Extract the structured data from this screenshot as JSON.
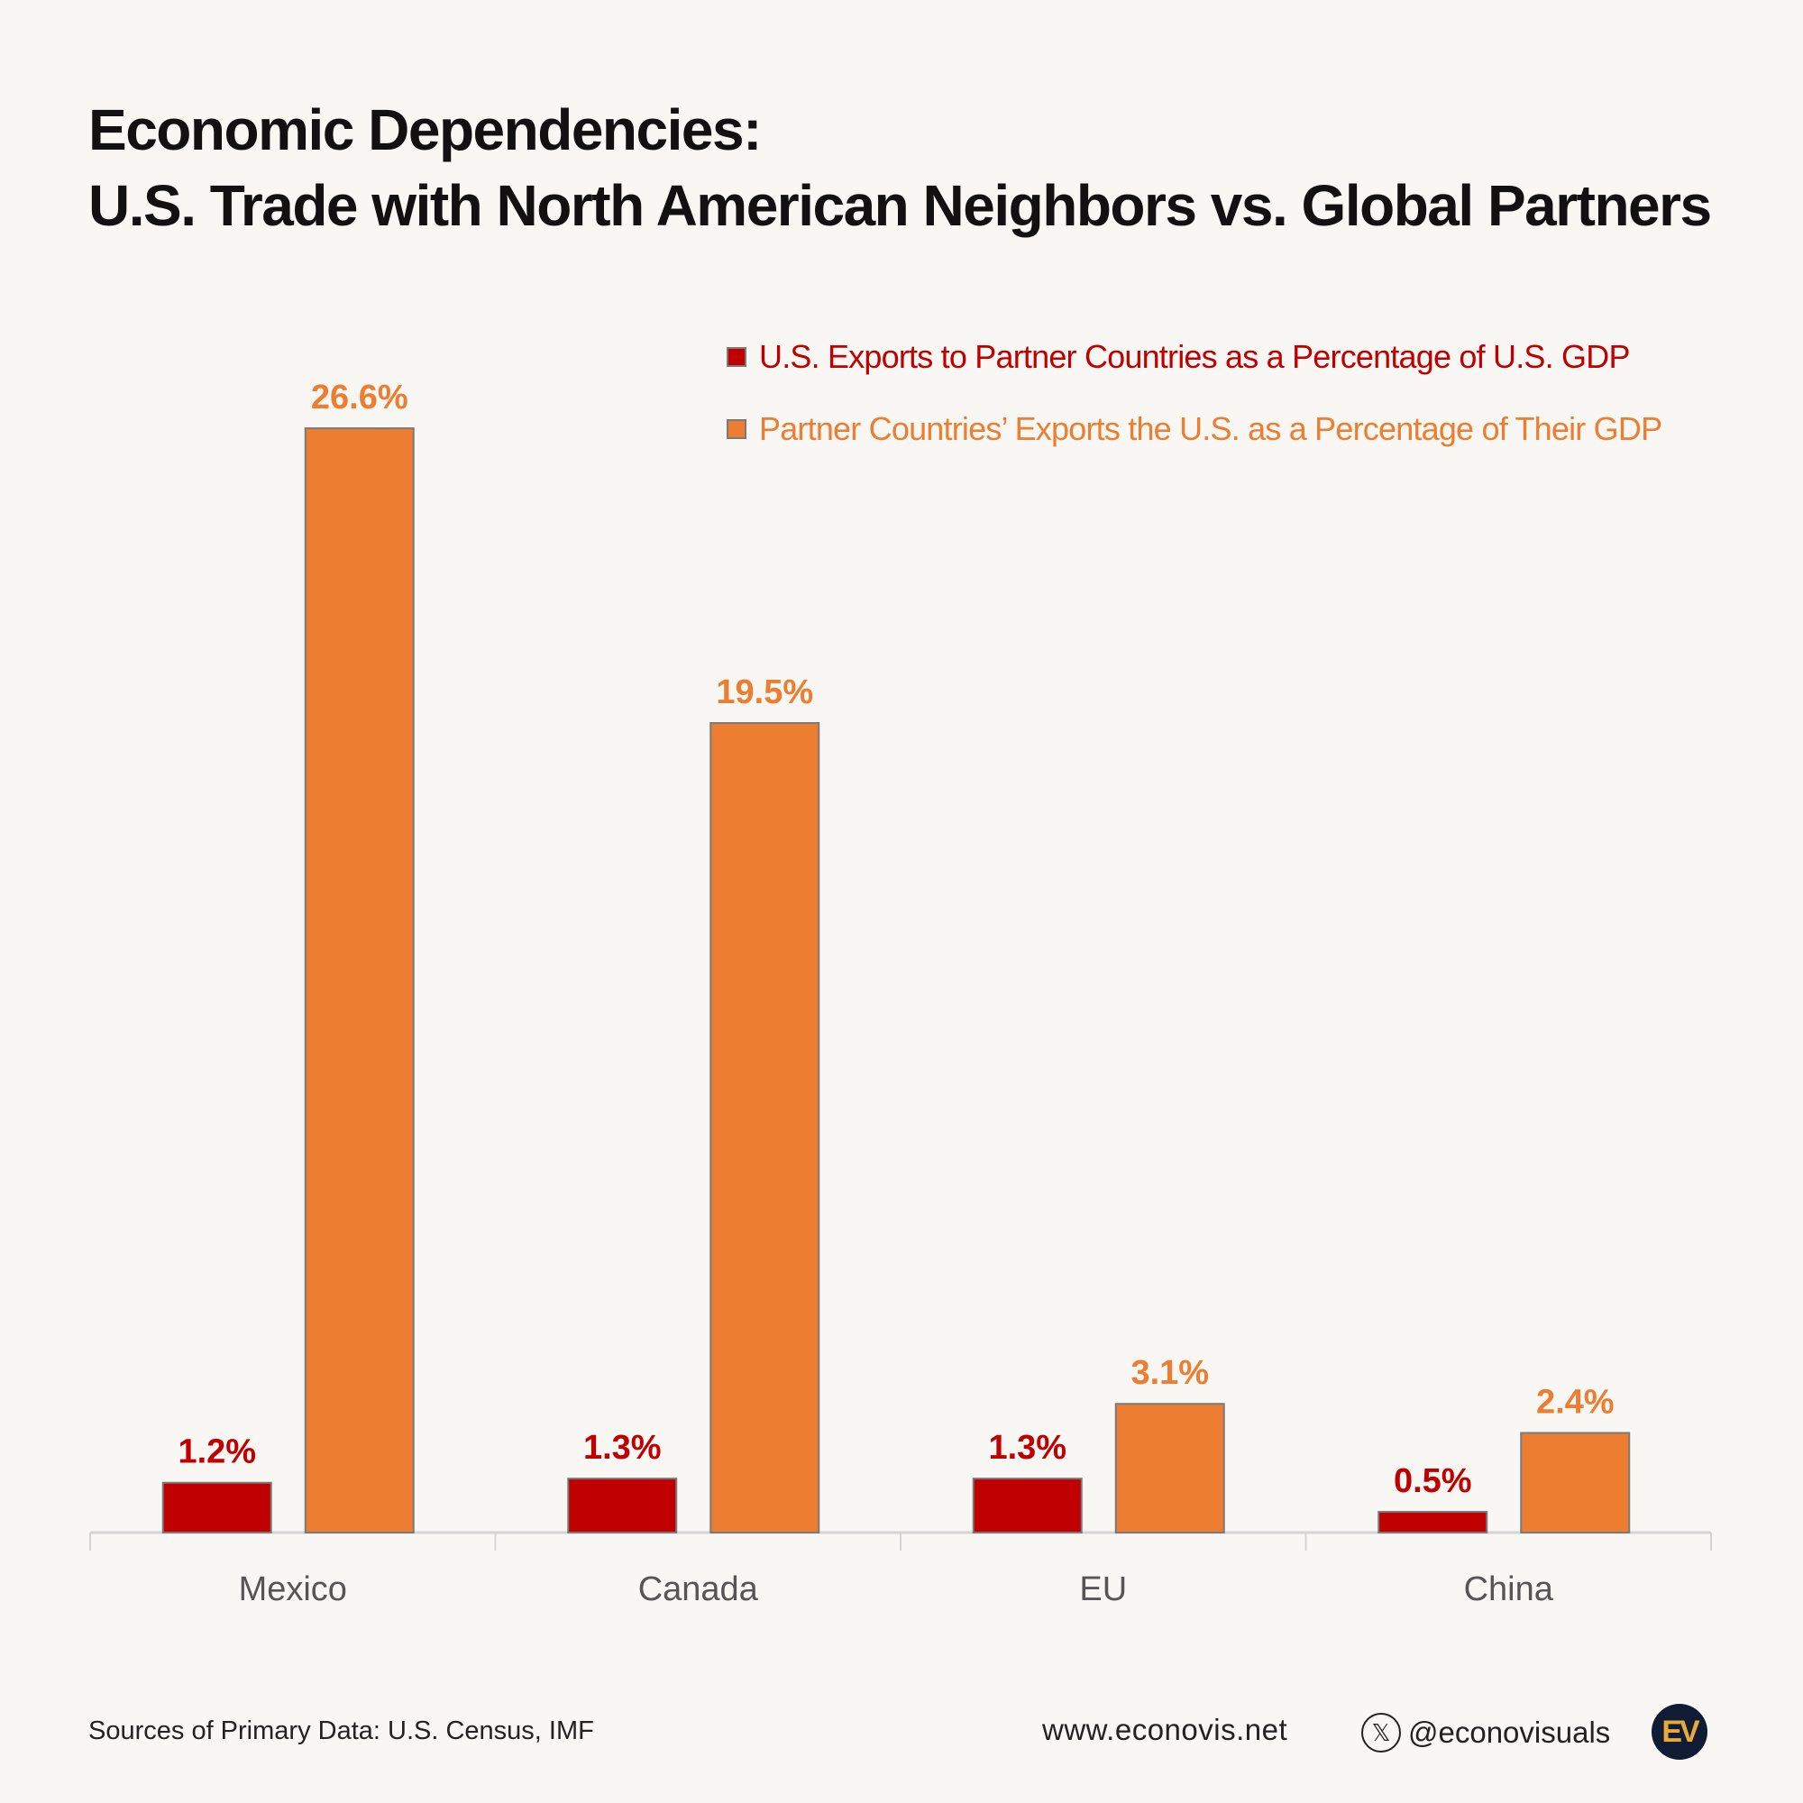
{
  "chart_data": {
    "type": "bar",
    "title": "Economic Dependencies:",
    "subtitle": "U.S. Trade with North American Neighbors vs. Global Partners",
    "categories": [
      "Mexico",
      "Canada",
      "EU",
      "China"
    ],
    "series": [
      {
        "name": "U.S. Exports to Partner Countries as a Percentage of U.S. GDP",
        "color": "#c00000",
        "values": [
          1.2,
          1.3,
          1.3,
          0.5
        ],
        "labels": [
          "1.2%",
          "1.3%",
          "1.3%",
          "0.5%"
        ]
      },
      {
        "name": "Partner Countries’ Exports the U.S. as a Percentage of Their GDP",
        "color": "#ed7d31",
        "values": [
          26.6,
          19.5,
          3.1,
          2.4
        ],
        "labels": [
          "26.6%",
          "19.5%",
          "3.1%",
          "2.4%"
        ]
      }
    ],
    "xlabel": "",
    "ylabel": "",
    "ylim": [
      0,
      26.6
    ],
    "grid": false,
    "legend_position": "top-right"
  },
  "footer": {
    "source": "Sources of Primary Data: U.S. Census, IMF",
    "website": "www.econovis.net",
    "x_handle": "@econovisuals",
    "x_icon": "x-logo-icon",
    "logo_text": "EV"
  },
  "colors": {
    "background": "#f9f7f3",
    "red": "#c00000",
    "orange": "#ed7d31",
    "logo_bg": "#0f1c33",
    "logo_fg": "#e9a93a"
  }
}
